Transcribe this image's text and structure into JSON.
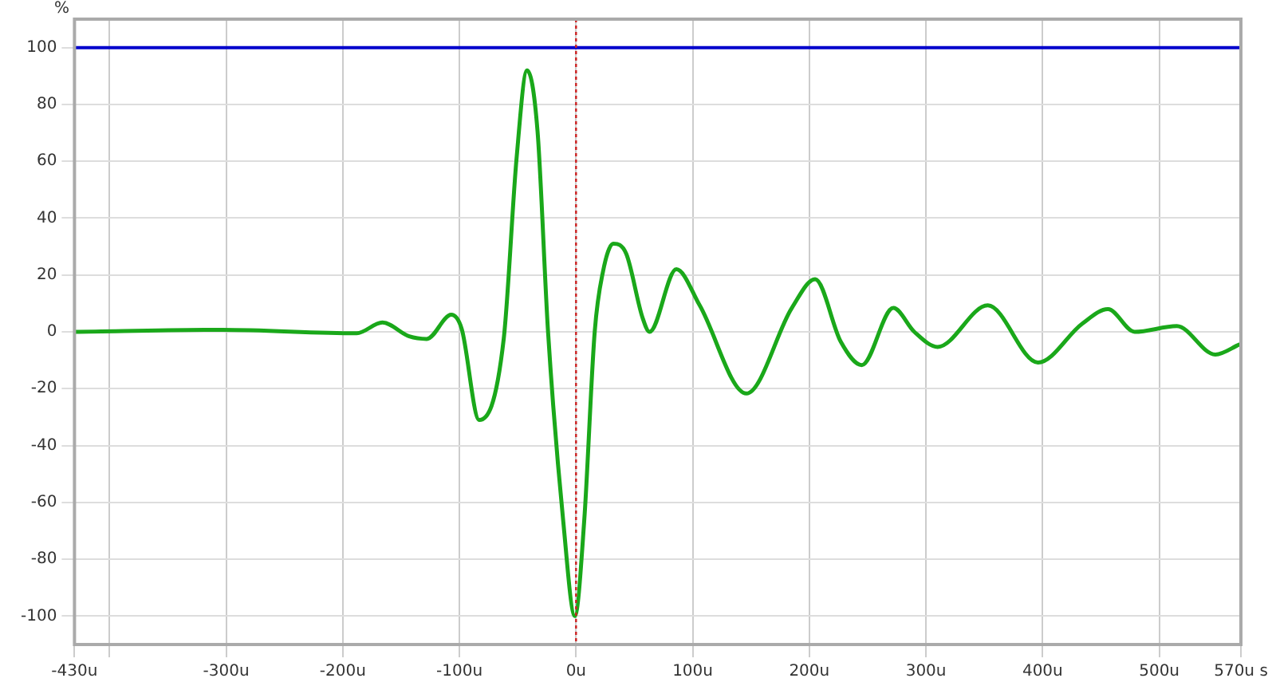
{
  "chart_data": {
    "type": "line",
    "ylabel": "%",
    "xlim": [
      -430,
      570
    ],
    "ylim": [
      -110,
      110
    ],
    "xticks": [
      {
        "value": -430,
        "label": "-430u"
      },
      {
        "value": -400,
        "label": null
      },
      {
        "value": -300,
        "label": "-300u"
      },
      {
        "value": -200,
        "label": "-200u"
      },
      {
        "value": -100,
        "label": "-100u"
      },
      {
        "value": 0,
        "label": "0u"
      },
      {
        "value": 100,
        "label": "100u"
      },
      {
        "value": 200,
        "label": "200u"
      },
      {
        "value": 300,
        "label": "300u"
      },
      {
        "value": 400,
        "label": "400u"
      },
      {
        "value": 500,
        "label": "500u"
      },
      {
        "value": 570,
        "label": "570u s"
      }
    ],
    "yticks": [
      -100,
      -80,
      -60,
      -40,
      -20,
      0,
      20,
      40,
      60,
      80,
      100
    ],
    "grid": true,
    "legend": false,
    "marker": "none",
    "line_style": "solid",
    "ref_lines": [
      {
        "axis": "y",
        "value": 100,
        "label": null,
        "color": "#0000cc",
        "line_style": "solid"
      },
      {
        "axis": "x",
        "value": 0,
        "label": null,
        "color": "#cc2222",
        "line_style": "dotted"
      }
    ],
    "series": [
      {
        "color": "#1aa81a",
        "x": [
          -430,
          -303,
          -188,
          -166,
          -143,
          -128,
          -107,
          -98,
          -83,
          -62,
          -51,
          -42,
          -33,
          -24,
          -11,
          -1,
          7,
          16,
          23,
          32,
          43,
          57,
          63,
          86,
          106,
          146,
          185,
          205,
          227,
          245,
          272,
          290,
          310,
          353,
          396,
          434,
          456,
          479,
          515,
          548,
          569
        ],
        "values": [
          0,
          0.7,
          -0.5,
          3.3,
          -1.6,
          -2.5,
          6,
          1,
          -31,
          -2.5,
          61,
          92,
          70.5,
          0,
          -66.5,
          -100,
          -66.5,
          0,
          21,
          31,
          27.5,
          5,
          0,
          22,
          9.3,
          -21.7,
          8.4,
          18.5,
          -3.5,
          -11.7,
          8.4,
          0,
          -5.3,
          9.3,
          -10.8,
          2.9,
          8,
          0,
          2,
          -8,
          -4.4
        ]
      }
    ]
  }
}
